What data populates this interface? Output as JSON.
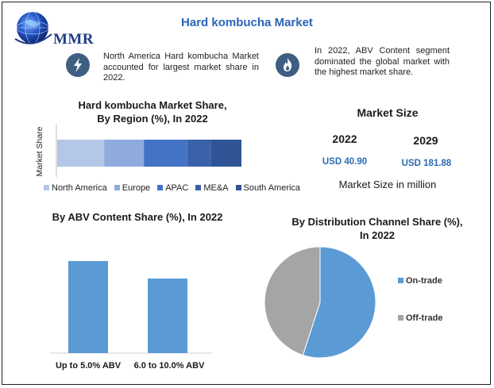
{
  "logo": {
    "text": "MMR"
  },
  "title": "Hard kombucha Market",
  "callouts": [
    {
      "icon": "lightning-icon",
      "text": "North America Hard kombucha Market accounted for largest market share in 2022."
    },
    {
      "icon": "flame-icon",
      "text": "In 2022, ABV Content segment dominated the global market with the highest market share."
    }
  ],
  "market_size": {
    "title": "Market Size",
    "years": [
      "2022",
      "2029"
    ],
    "values": [
      "USD 40.90",
      "USD 181.88"
    ],
    "note": "Market Size in million"
  },
  "colors": {
    "title": "#2b65b8",
    "icon_bg": "#3d5f82",
    "bar": "#5b9bd5",
    "pie_on": "#5b9bd5",
    "pie_off": "#a5a5a5",
    "value_text": "#2b6cb3"
  },
  "chart_data": [
    {
      "type": "bar",
      "orientation": "horizontal-stacked",
      "title_lines": [
        "Hard kombucha Market Share,",
        "By Region (%), In 2022"
      ],
      "ylabel": "Market Share",
      "legend_position": "bottom",
      "grid": false,
      "series": [
        {
          "name": "North America",
          "value": 26,
          "color": "#b4c7e7"
        },
        {
          "name": "Europe",
          "value": 22,
          "color": "#8faadc"
        },
        {
          "name": "APAC",
          "value": 24,
          "color": "#4472c4"
        },
        {
          "name": "ME&A",
          "value": 13,
          "color": "#3a62aa"
        },
        {
          "name": "South America",
          "value": 17,
          "color": "#2f5597"
        }
      ]
    },
    {
      "type": "bar",
      "title": "By ABV Content  Share (%), In 2022",
      "categories": [
        "Up to 5.0% ABV",
        "6.0 to 10.0% ABV"
      ],
      "values": [
        58,
        47
      ],
      "ylim": [
        0,
        70
      ],
      "grid": false
    },
    {
      "type": "pie",
      "title_lines": [
        "By Distribution Channel Share (%),",
        "In 2022"
      ],
      "legend_position": "right",
      "labels": [
        "On-trade",
        "Off-trade"
      ],
      "values": [
        55,
        45
      ]
    }
  ]
}
